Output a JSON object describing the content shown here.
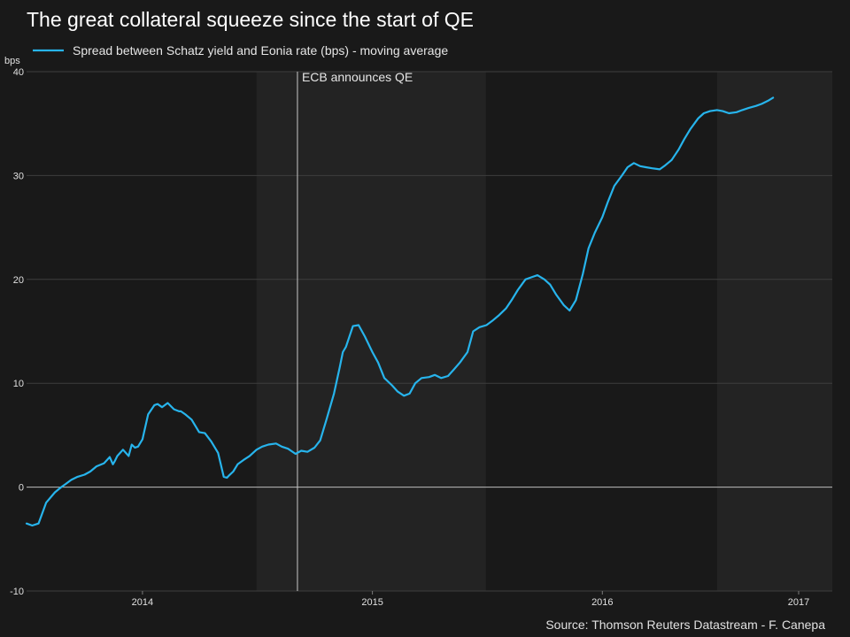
{
  "chart_data": {
    "type": "line",
    "title": "The great collateral squeeze since the start of QE",
    "ylabel": "bps",
    "xlabel": "",
    "ylim": [
      -10,
      40
    ],
    "xlim": [
      "2013-07-01",
      "2016-12-31"
    ],
    "grid": true,
    "legend_position": "top-left",
    "yticks": [
      -10,
      0,
      10,
      20,
      30,
      40
    ],
    "xticks": [
      {
        "label": "2014",
        "date": "2014-01-01"
      },
      {
        "label": "2015",
        "date": "2015-01-01"
      },
      {
        "label": "2016",
        "date": "2016-01-01"
      },
      {
        "label": "2017",
        "date": "2017-01-01"
      }
    ],
    "shaded_periods": [
      {
        "start": "2014-07-01",
        "end": "2015-06-30"
      },
      {
        "start": "2016-07-01",
        "end": "2016-12-31"
      }
    ],
    "annotations": [
      {
        "text": "ECB announces QE",
        "date": "2014-09-04"
      }
    ],
    "source": "Source: Thomson Reuters Datastream - F. Canepa",
    "series": [
      {
        "name": "Spread between Schatz yield and Eonia rate (bps) - moving average",
        "color": "#27b4ec",
        "x": [
          "2013-07-01",
          "2013-07-10",
          "2013-07-20",
          "2013-08-01",
          "2013-08-15",
          "2013-08-25",
          "2013-09-01",
          "2013-09-10",
          "2013-09-20",
          "2013-10-01",
          "2013-10-10",
          "2013-10-20",
          "2013-11-01",
          "2013-11-10",
          "2013-11-15",
          "2013-11-18",
          "2013-11-22",
          "2013-12-01",
          "2013-12-10",
          "2013-12-15",
          "2013-12-20",
          "2013-12-25",
          "2014-01-01",
          "2014-01-10",
          "2014-01-20",
          "2014-01-25",
          "2014-02-01",
          "2014-02-10",
          "2014-02-20",
          "2014-02-28",
          "2014-03-03",
          "2014-03-10",
          "2014-03-20",
          "2014-04-01",
          "2014-04-10",
          "2014-04-20",
          "2014-05-01",
          "2014-05-10",
          "2014-05-15",
          "2014-05-18",
          "2014-05-25",
          "2014-06-01",
          "2014-06-10",
          "2014-06-20",
          "2014-07-01",
          "2014-07-10",
          "2014-07-20",
          "2014-08-01",
          "2014-08-10",
          "2014-08-20",
          "2014-09-01",
          "2014-09-10",
          "2014-09-20",
          "2014-10-01",
          "2014-10-10",
          "2014-10-20",
          "2014-11-01",
          "2014-11-10",
          "2014-11-15",
          "2014-11-20",
          "2014-12-01",
          "2014-12-10",
          "2014-12-20",
          "2015-01-01",
          "2015-01-10",
          "2015-01-20",
          "2015-02-01",
          "2015-02-10",
          "2015-02-20",
          "2015-03-01",
          "2015-03-10",
          "2015-03-20",
          "2015-04-01",
          "2015-04-10",
          "2015-04-20",
          "2015-05-01",
          "2015-05-10",
          "2015-05-20",
          "2015-06-01",
          "2015-06-10",
          "2015-06-20",
          "2015-07-01",
          "2015-07-10",
          "2015-07-20",
          "2015-08-01",
          "2015-08-10",
          "2015-08-20",
          "2015-09-01",
          "2015-09-10",
          "2015-09-20",
          "2015-10-01",
          "2015-10-10",
          "2015-10-20",
          "2015-11-01",
          "2015-11-10",
          "2015-11-20",
          "2015-12-01",
          "2015-12-10",
          "2015-12-20",
          "2016-01-01",
          "2016-01-10",
          "2016-01-20",
          "2016-02-01",
          "2016-02-10",
          "2016-02-20",
          "2016-03-01",
          "2016-03-10",
          "2016-03-20",
          "2016-04-01",
          "2016-04-10",
          "2016-04-20",
          "2016-05-01",
          "2016-05-10",
          "2016-05-20",
          "2016-06-01",
          "2016-06-10",
          "2016-06-20",
          "2016-07-01",
          "2016-07-10",
          "2016-07-20",
          "2016-08-01",
          "2016-08-10",
          "2016-08-20",
          "2016-09-01",
          "2016-09-10",
          "2016-09-20",
          "2016-09-28"
        ],
        "values": [
          -3.5,
          -3.7,
          -3.5,
          -1.5,
          -0.5,
          0,
          0.3,
          0.7,
          1,
          1.2,
          1.5,
          2,
          2.3,
          2.9,
          2.2,
          2.5,
          3,
          3.6,
          3,
          4.1,
          3.8,
          3.9,
          4.6,
          7,
          7.9,
          8,
          7.7,
          8.1,
          7.5,
          7.3,
          7.3,
          7,
          6.5,
          5.3,
          5.2,
          4.4,
          3.3,
          1,
          0.9,
          1.1,
          1.5,
          2.2,
          2.6,
          3,
          3.6,
          3.9,
          4.1,
          4.2,
          3.9,
          3.7,
          3.2,
          3.5,
          3.4,
          3.8,
          4.5,
          6.5,
          9,
          11.5,
          13,
          13.5,
          15.5,
          15.6,
          14.5,
          13,
          12,
          10.5,
          9.8,
          9.2,
          8.8,
          9,
          10,
          10.5,
          10.6,
          10.8,
          10.5,
          10.7,
          11.3,
          12,
          13,
          15,
          15.4,
          15.6,
          16,
          16.5,
          17.2,
          18,
          19,
          20,
          20.2,
          20.4,
          20,
          19.5,
          18.5,
          17.5,
          17,
          18,
          20.5,
          23,
          24.5,
          26,
          27.5,
          29,
          30,
          30.8,
          31.2,
          30.9,
          30.8,
          30.7,
          30.6,
          31,
          31.5,
          32.5,
          33.5,
          34.5,
          35.5,
          36,
          36.2,
          36.3,
          36.2,
          36,
          36.1,
          36.3,
          36.5,
          36.7,
          36.9,
          37.2,
          37.5
        ],
        "note_unused": ""
      }
    ]
  }
}
